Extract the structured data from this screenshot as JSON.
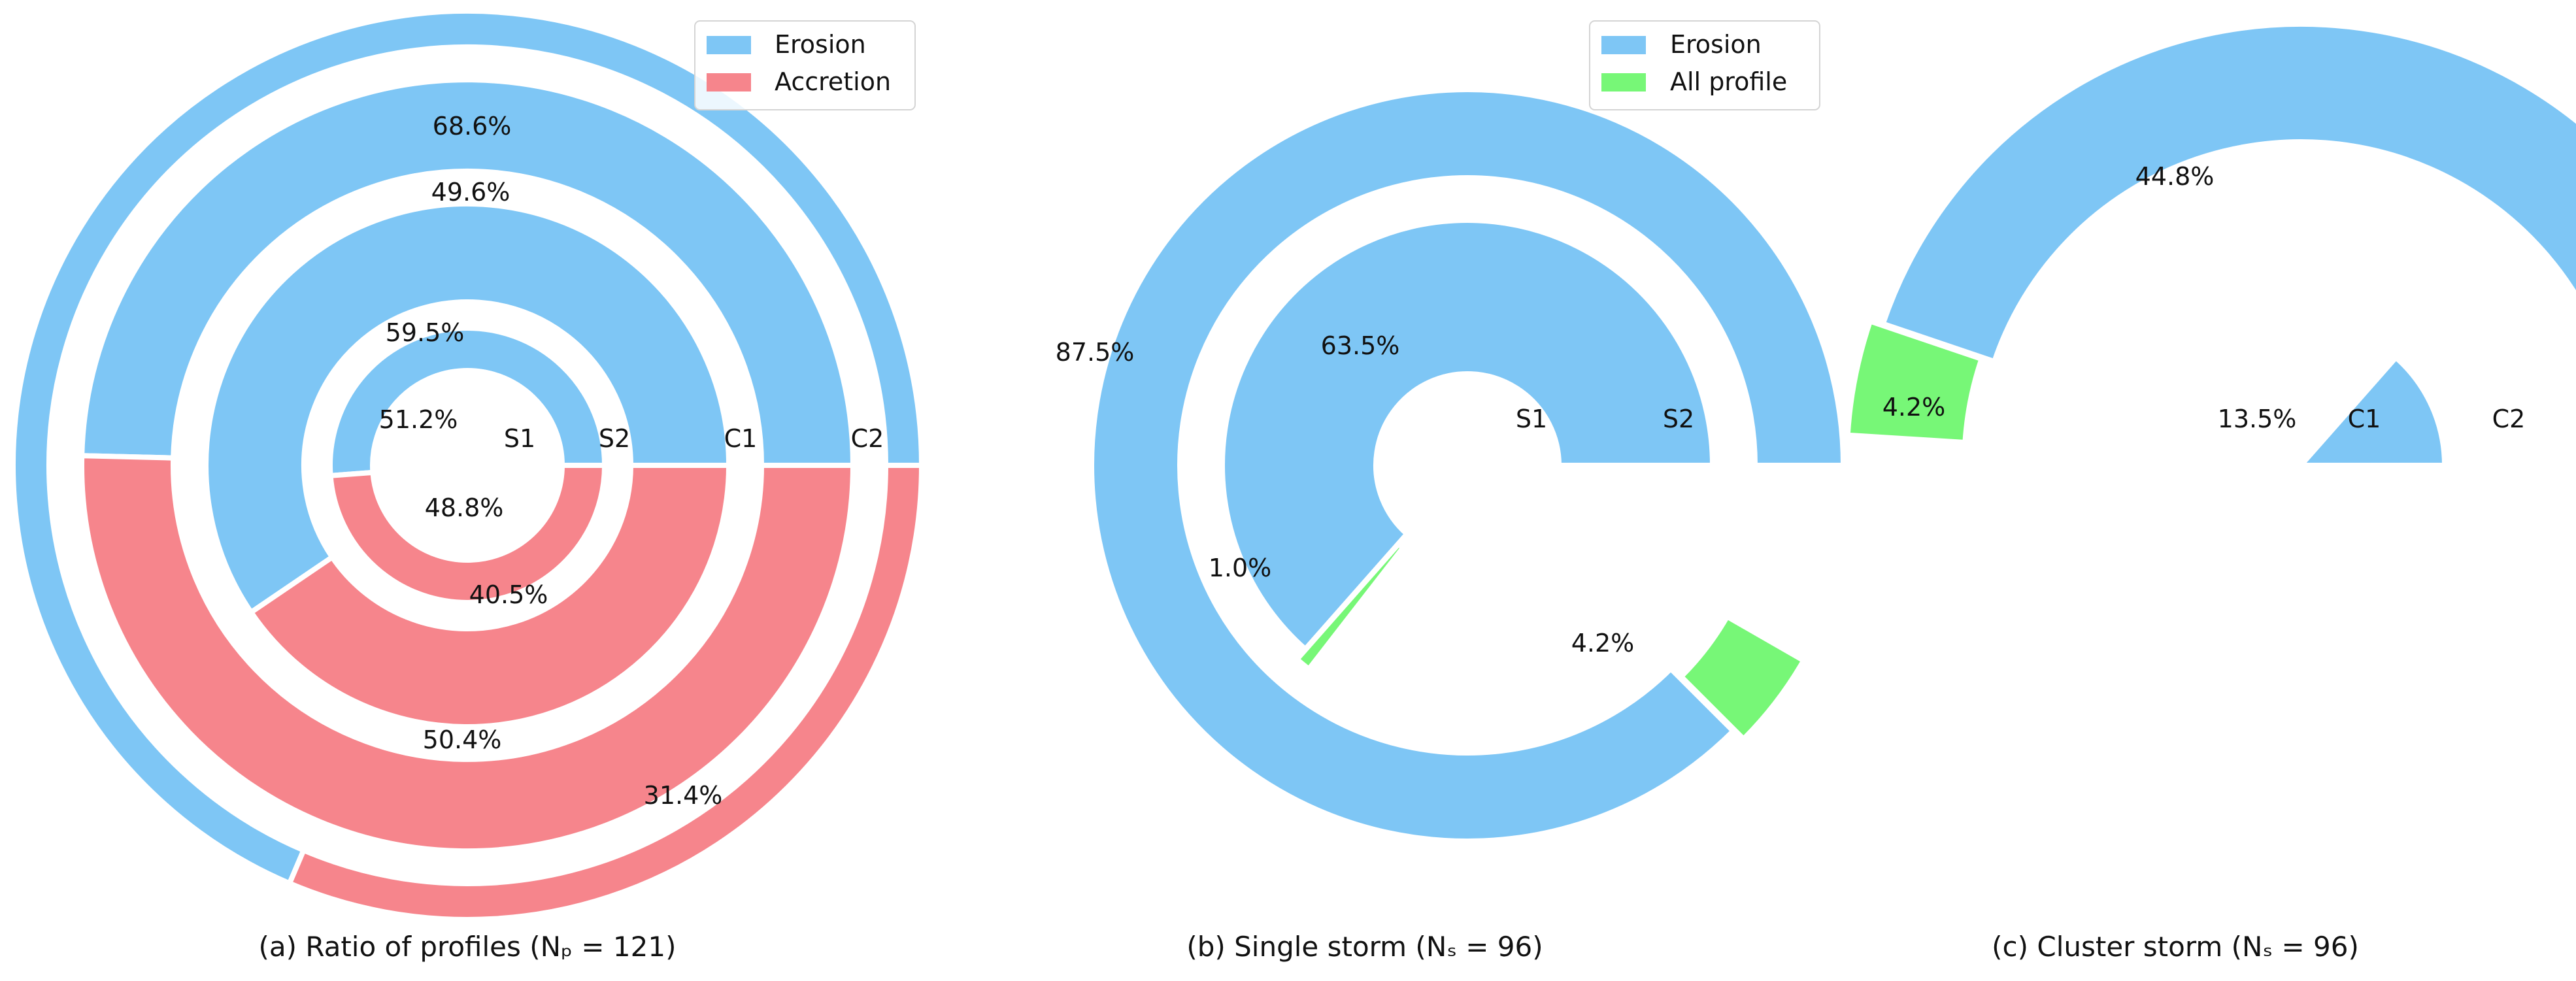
{
  "chart_data": [
    {
      "type": "pie",
      "subtype": "nested-donut",
      "title": "(a) Ratio of profiles (Nₚ = 121)",
      "legend": {
        "placement": "top-right",
        "entries": [
          "Erosion",
          "Accretion"
        ]
      },
      "colors": {
        "Erosion": "#7ec6f5",
        "Accretion": "#f6858c"
      },
      "rings": [
        {
          "name": "S1",
          "values": [
            {
              "label": "Erosion",
              "value": 51.2,
              "text": "51.2%"
            },
            {
              "label": "Accretion",
              "value": 48.8,
              "text": "48.8%"
            }
          ]
        },
        {
          "name": "S2",
          "values": [
            {
              "label": "Erosion",
              "value": 59.5,
              "text": "59.5%"
            },
            {
              "label": "Accretion",
              "value": 40.5,
              "text": "40.5%"
            }
          ]
        },
        {
          "name": "C1",
          "values": [
            {
              "label": "Erosion",
              "value": 49.6,
              "text": "49.6%"
            },
            {
              "label": "Accretion",
              "value": 50.4,
              "text": "50.4%"
            }
          ]
        },
        {
          "name": "C2",
          "values": [
            {
              "label": "Erosion",
              "value": 68.6,
              "text": "68.6%"
            },
            {
              "label": "Accretion",
              "value": 31.4,
              "text": "31.4%"
            }
          ]
        }
      ]
    },
    {
      "type": "pie",
      "subtype": "nested-donut",
      "title": "(b) Single storm (Nₛ = 96)",
      "legend": {
        "placement": "top-center",
        "entries": [
          "Erosion",
          "All profile"
        ]
      },
      "colors": {
        "Erosion": "#7ec6f5",
        "All profile": "#77f777"
      },
      "rings": [
        {
          "name": "S1",
          "values": [
            {
              "label": "Erosion",
              "value": 63.5,
              "text": "63.5%"
            },
            {
              "label": "All profile",
              "value": 1.0,
              "text": "1.0%"
            }
          ]
        },
        {
          "name": "S2",
          "values": [
            {
              "label": "Erosion",
              "value": 87.5,
              "text": "87.5%"
            },
            {
              "label": "All profile",
              "value": 4.2,
              "text": "4.2%"
            }
          ]
        }
      ]
    },
    {
      "type": "pie",
      "subtype": "nested-donut",
      "title": "(c) Cluster storm (Nₛ = 96)",
      "colors": {
        "Erosion": "#7ec6f5",
        "All profile": "#77f777"
      },
      "rings": [
        {
          "name": "C1",
          "values": [
            {
              "label": "Erosion",
              "value": 13.5,
              "text": "13.5%"
            }
          ]
        },
        {
          "name": "C2",
          "values": [
            {
              "label": "Erosion",
              "value": 44.8,
              "text": "44.8%"
            },
            {
              "label": "All profile",
              "value": 4.2,
              "text": "4.2%"
            }
          ]
        }
      ]
    }
  ]
}
